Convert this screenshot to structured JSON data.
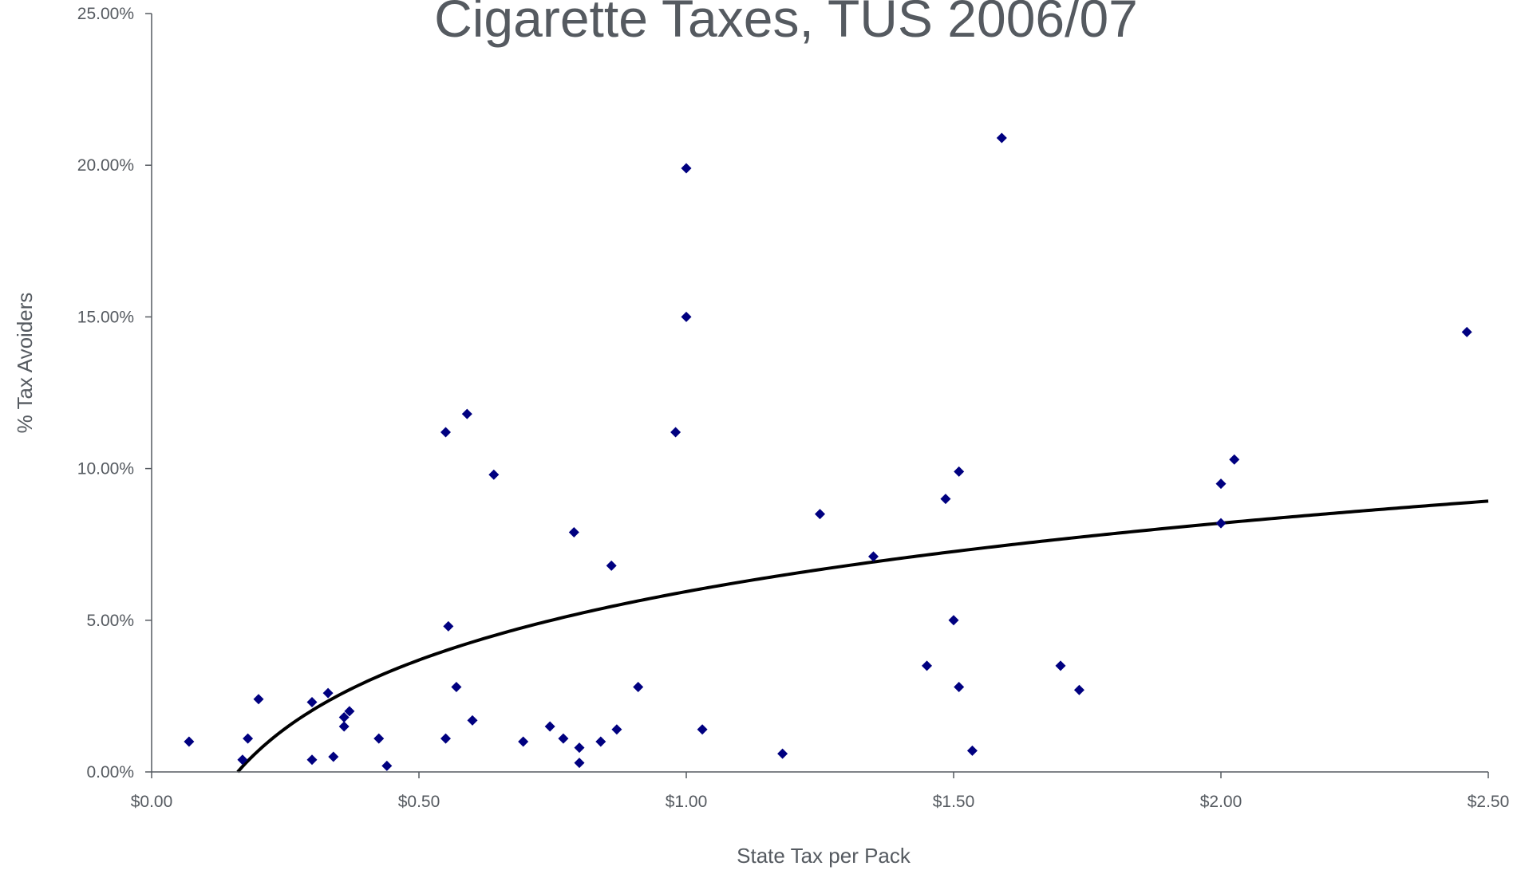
{
  "chart_data": {
    "type": "scatter",
    "title": "Cigarette Taxes, TUS 2006/07",
    "xlabel": "State Tax per Pack",
    "ylabel": "% Tax Avoiders",
    "xlim": [
      0,
      2.5
    ],
    "ylim": [
      0,
      0.25
    ],
    "x_ticks": [
      0,
      0.5,
      1.0,
      1.5,
      2.0,
      2.5
    ],
    "x_tick_labels": [
      "$0.00",
      "$0.50",
      "$1.00",
      "$1.50",
      "$2.00",
      "$2.50"
    ],
    "y_ticks": [
      0,
      0.05,
      0.1,
      0.15,
      0.2,
      0.25
    ],
    "y_tick_labels": [
      "0.00%",
      "5.00%",
      "10.00%",
      "15.00%",
      "20.00%",
      "25.00%"
    ],
    "grid": false,
    "legend": "none",
    "marker_color": "#000080",
    "trend_color": "#000000",
    "series": [
      {
        "points": [
          [
            0.07,
            0.01
          ],
          [
            0.17,
            0.004
          ],
          [
            0.18,
            0.011
          ],
          [
            0.2,
            0.024
          ],
          [
            0.3,
            0.023
          ],
          [
            0.3,
            0.004
          ],
          [
            0.33,
            0.026
          ],
          [
            0.34,
            0.005
          ],
          [
            0.36,
            0.018
          ],
          [
            0.36,
            0.015
          ],
          [
            0.37,
            0.02
          ],
          [
            0.425,
            0.011
          ],
          [
            0.44,
            0.002
          ],
          [
            0.55,
            0.112
          ],
          [
            0.55,
            0.011
          ],
          [
            0.555,
            0.048
          ],
          [
            0.57,
            0.028
          ],
          [
            0.59,
            0.118
          ],
          [
            0.6,
            0.017
          ],
          [
            0.64,
            0.098
          ],
          [
            0.695,
            0.01
          ],
          [
            0.745,
            0.015
          ],
          [
            0.77,
            0.011
          ],
          [
            0.79,
            0.079
          ],
          [
            0.8,
            0.008
          ],
          [
            0.8,
            0.003
          ],
          [
            0.84,
            0.01
          ],
          [
            0.86,
            0.068
          ],
          [
            0.87,
            0.014
          ],
          [
            0.91,
            0.028
          ],
          [
            0.98,
            0.112
          ],
          [
            1.0,
            0.199
          ],
          [
            1.0,
            0.15
          ],
          [
            1.03,
            0.014
          ],
          [
            1.18,
            0.006
          ],
          [
            1.25,
            0.085
          ],
          [
            1.35,
            0.071
          ],
          [
            1.45,
            0.035
          ],
          [
            1.485,
            0.09
          ],
          [
            1.5,
            0.05
          ],
          [
            1.51,
            0.099
          ],
          [
            1.51,
            0.028
          ],
          [
            1.535,
            0.007
          ],
          [
            1.59,
            0.209
          ],
          [
            1.7,
            0.035
          ],
          [
            1.735,
            0.027
          ],
          [
            2.0,
            0.095
          ],
          [
            2.0,
            0.082
          ],
          [
            2.025,
            0.103
          ],
          [
            2.46,
            0.145
          ]
        ]
      }
    ],
    "trendline": {
      "type": "logarithmic",
      "a": 0.05945,
      "b": 0.03255
    }
  }
}
